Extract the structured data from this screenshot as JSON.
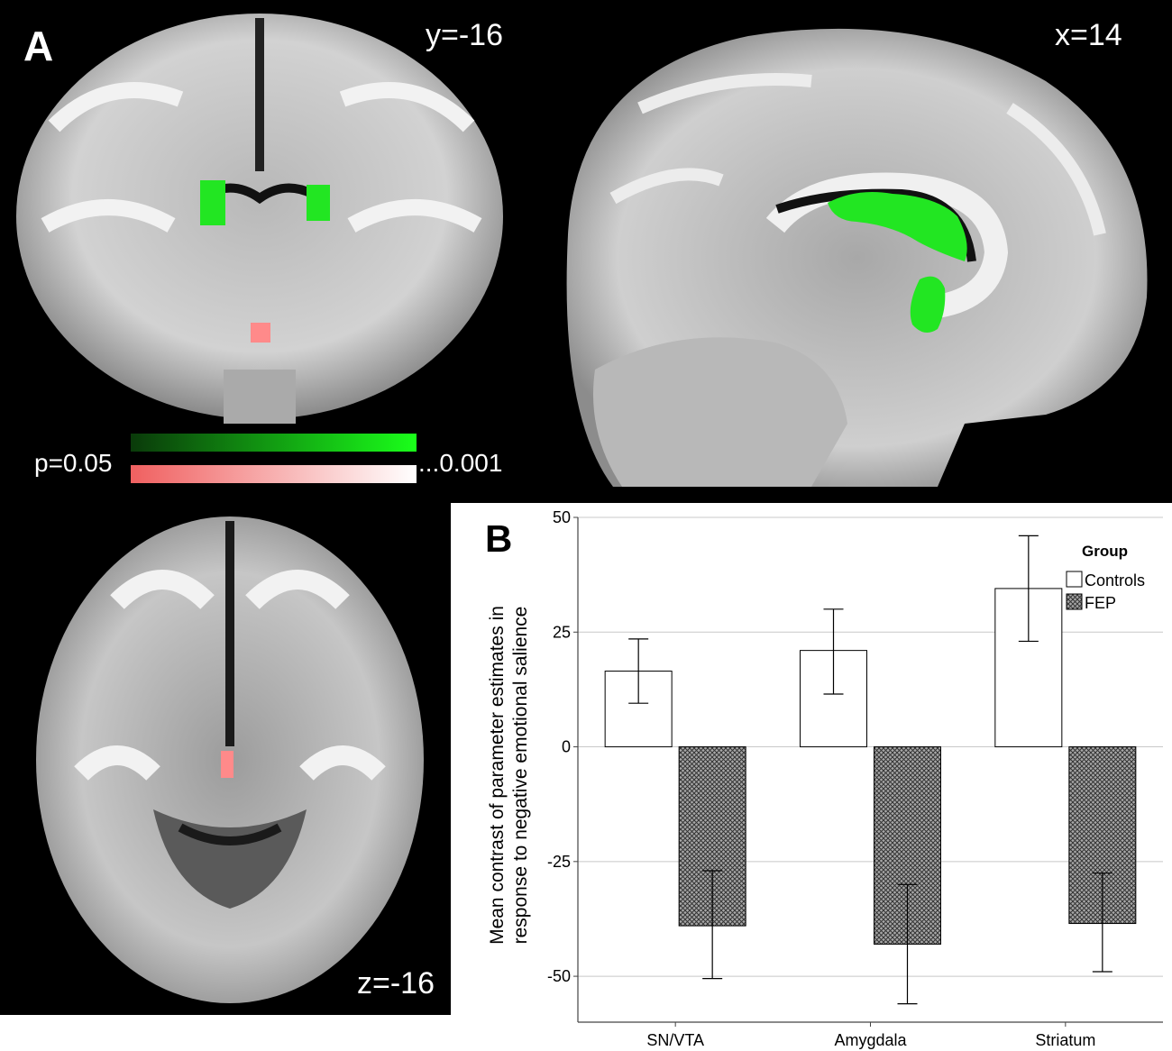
{
  "figure": {
    "panel_a_letter": "A",
    "panel_b_letter": "B",
    "coronal_label": "y=-16",
    "sagittal_label": "x=14",
    "axial_label": "z=-16",
    "colorbar": {
      "low_label": "p=0.05",
      "high_label": "...0.001",
      "green_colors": [
        "#0a3a0a",
        "#1aff1a"
      ],
      "red_colors": [
        "#f06060",
        "#ffffff"
      ]
    },
    "colors": {
      "activation_green": "#22e622",
      "activation_red": "#ff8080",
      "background": "#000000"
    }
  },
  "chart_data": {
    "type": "bar",
    "categories": [
      "SN/VTA",
      "Amygdala",
      "Striatum"
    ],
    "series": [
      {
        "name": "Controls",
        "values": [
          16.5,
          21,
          34.5
        ],
        "ci_low": [
          9.5,
          11.5,
          23
        ],
        "ci_high": [
          23.5,
          30,
          46
        ],
        "fill": "white"
      },
      {
        "name": "FEP",
        "values": [
          -39,
          -43,
          -38.5
        ],
        "ci_low": [
          -50.5,
          -56,
          -49
        ],
        "ci_high": [
          -27,
          -30,
          -27.5
        ],
        "fill": "crosshatch"
      }
    ],
    "yticks": [
      50,
      25,
      0,
      -25,
      -50
    ],
    "ytick_labels": [
      "50",
      "25",
      "0",
      "-25",
      "-50"
    ],
    "ylim": [
      -60,
      50
    ],
    "ylabel_line1": "Mean contrast of parameter estimates in",
    "ylabel_line2": "response to negative emotional salience",
    "legend_title": "Group",
    "legend_position": "top-right",
    "grid": true
  }
}
